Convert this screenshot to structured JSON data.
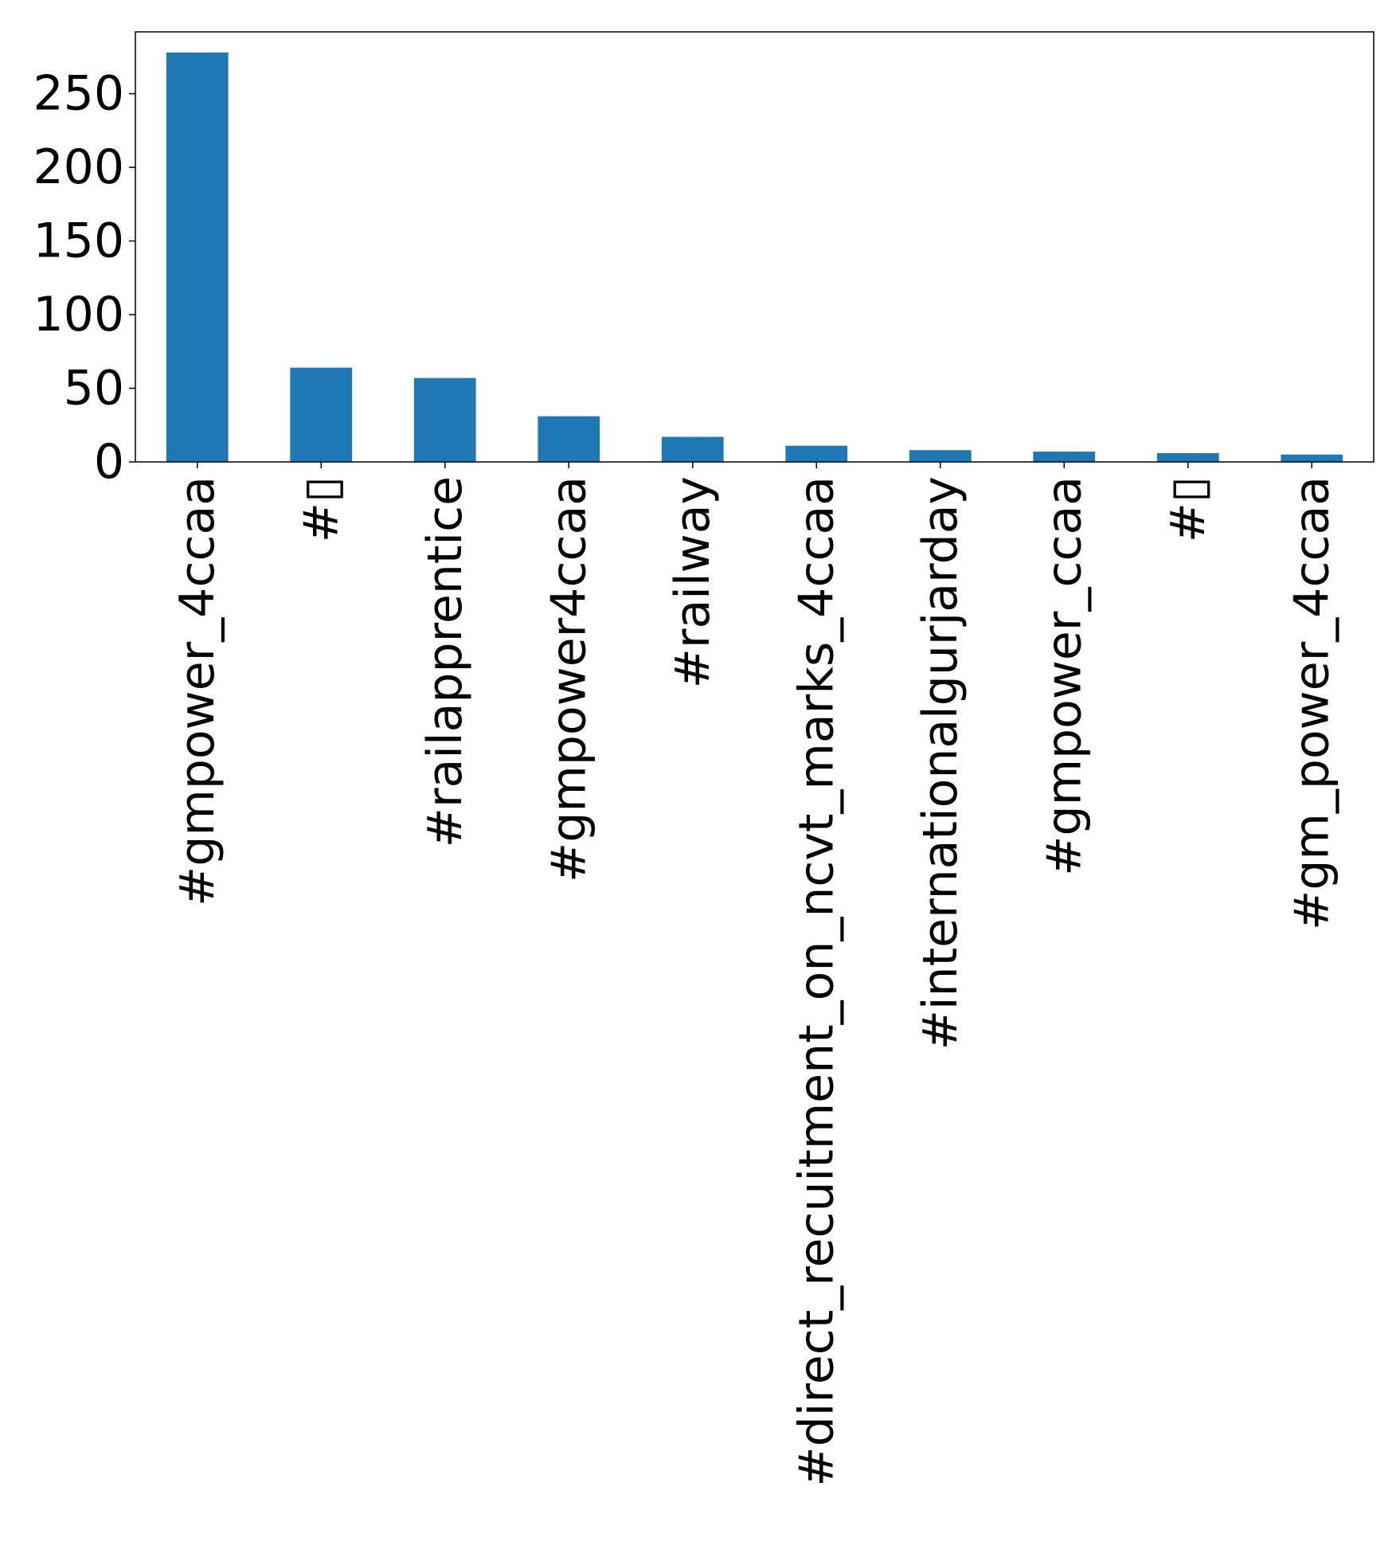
{
  "chart_data": {
    "type": "bar",
    "categories": [
      "#gmpower_4ccaa",
      "#▯",
      "#railapprentice",
      "#gmpower4ccaa",
      "#railway",
      "#direct_recuitment_on_ncvt_marks_4ccaa",
      "#internationalgurjarday",
      "#gmpower_ccaa",
      "#▯",
      "#gm_power_4ccaa"
    ],
    "values": [
      278,
      64,
      57,
      31,
      17,
      11,
      8,
      7,
      6,
      5
    ],
    "xlabel": "",
    "ylabel": "",
    "ylim": [
      0,
      292
    ],
    "yticks": [
      0,
      50,
      100,
      150,
      200,
      250
    ],
    "ytick_labels": [
      "0",
      "50",
      "100",
      "150",
      "200",
      "250"
    ],
    "bar_color": "#1f77b4",
    "grid": false,
    "legend": "none"
  }
}
